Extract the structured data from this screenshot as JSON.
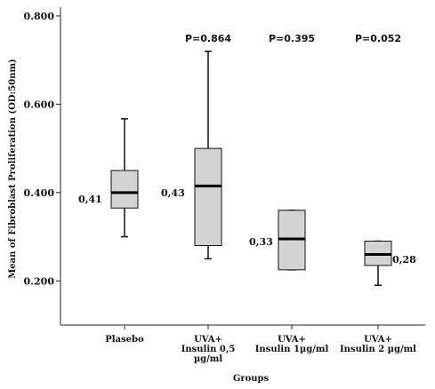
{
  "chart_data": {
    "type": "box",
    "xlabel": "Groups",
    "ylabel": "Mean of Fibroblast Proliferation (OD:50nm)",
    "ylim": [
      0.1,
      0.82
    ],
    "yticks": [
      "0.200",
      "0.400",
      "0.600",
      "0.800"
    ],
    "ytick_values": [
      0.2,
      0.4,
      0.6,
      0.8
    ],
    "grid": false,
    "categories": [
      [
        "Plasebo"
      ],
      [
        "UVA+",
        "Insulin 0,5",
        "µg/ml"
      ],
      [
        "UVA+",
        "Insulin 1µg/ml"
      ],
      [
        "UVA+",
        "Insulin 2 µg/ml"
      ]
    ],
    "boxes": [
      {
        "min": 0.3,
        "q1": 0.365,
        "median": 0.4,
        "q3": 0.45,
        "max": 0.567
      },
      {
        "min": 0.25,
        "q1": 0.28,
        "median": 0.415,
        "q3": 0.5,
        "max": 0.72
      },
      {
        "min": 0.225,
        "q1": 0.225,
        "median": 0.295,
        "q3": 0.36,
        "max": 0.36
      },
      {
        "min": 0.19,
        "q1": 0.235,
        "median": 0.26,
        "q3": 0.29,
        "max": 0.29
      }
    ],
    "mean_labels": [
      "0,41",
      "0,43",
      "0,33",
      "0,28"
    ],
    "p_values": [
      "",
      "P=0.864",
      "P=0.395",
      "P=0.052"
    ],
    "box_fill": "#d3d3d3"
  }
}
